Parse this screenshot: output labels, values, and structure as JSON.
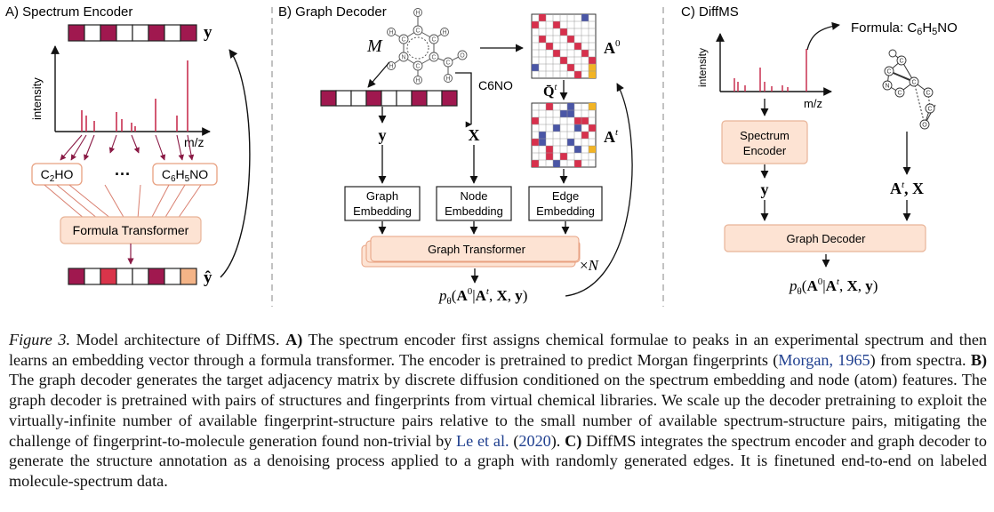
{
  "panels": {
    "a": {
      "title": "A) Spectrum Encoder",
      "y_axis_label": "intensity",
      "x_axis_label": "m/z",
      "y_output": "y",
      "y_hat": "ŷ",
      "formula_left": "C2HO",
      "formula_dots": "···",
      "formula_right": "C6H5NO",
      "transformer": "Formula Transformer"
    },
    "b": {
      "title": "B) Graph Decoder",
      "molecule_symbol": "M",
      "formula": "C6NO",
      "y_label": "y",
      "x_label": "X",
      "a0": "A0",
      "q_bar": "Q̄t",
      "at": "At",
      "graph_embedding": [
        "Graph",
        "Embedding"
      ],
      "node_embedding": [
        "Node",
        "Embedding"
      ],
      "edge_embedding": [
        "Edge",
        "Embedding"
      ],
      "graph_transformer": "Graph Transformer",
      "times_n": "×N",
      "output": "pθ(A0|At, X, y)"
    },
    "c": {
      "title": "C) DiffMS",
      "y_axis_label": "intensity",
      "x_axis_label": "m/z",
      "formula": "Formula: C6H5NO",
      "spectrum_encoder": [
        "Spectrum",
        "Encoder"
      ],
      "y_label": "y",
      "ax_label": "At, X",
      "graph_decoder": "Graph Decoder",
      "output": "pθ(A0|At, X, y)"
    }
  },
  "caption": {
    "label": "Figure 3.",
    "text_1": "Model architecture of DiffMS.",
    "a_label": "A)",
    "text_a": "The spectrum encoder first assigns chemical formulae to peaks in an experimental spectrum and then learns an embedding vector through a formula transformer. The encoder is pretrained to predict Morgan fingerprints (",
    "cite_1": "Morgan, 1965",
    "text_a_end": ") from spectra.",
    "b_label": "B)",
    "text_b": "The graph decoder generates the target adjacency matrix by discrete diffusion conditioned on the spectrum embedding and node (atom) features. The graph decoder is pretrained with pairs of structures and fingerprints from virtual chemical libraries. We scale up the decoder pretraining to exploit the virtually-infinite number of available fingerprint-structure pairs relative to the small number of available spectrum-structure pairs, mitigating the challenge of fingerprint-to-molecule generation found non-trivial by",
    "cite_2a": "Le et al.",
    "cite_2b": "2020",
    "text_b_end": ").",
    "c_label": "C)",
    "text_c": "DiffMS integrates the spectrum encoder and graph decoder to generate the structure annotation as a denoising process applied to a graph with randomly generated edges. It is finetuned end-to-end on labeled molecule-spectrum data."
  },
  "colors": {
    "maroon": "#a0184f",
    "crimson": "#d9344a",
    "peach": "#f4b487",
    "box_fill": "#fde3d3",
    "box_stroke": "#e8a080",
    "blue": "#4a56a6",
    "red": "#d7304c",
    "yellow": "#f2b424",
    "cite": "#1f3f8f"
  }
}
